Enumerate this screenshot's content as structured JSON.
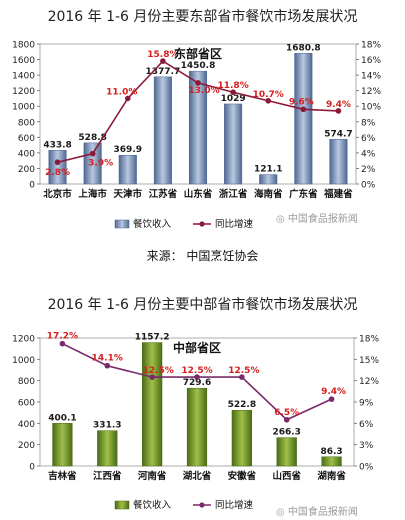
{
  "page_title_east": "2016 年 1-6 月份主要东部省市餐饮市场发展状况",
  "page_title_central": "2016 年 1-6 月份主要中部省市餐饮市场发展状况",
  "source_text": "来源：  中国烹饪协会",
  "watermark": "中国食品报新闻",
  "colors": {
    "bar_east": "#7d93b8",
    "bar_central": "#6e8d2a",
    "line": "#8b1a3a",
    "line_central": "#7a2a6a"
  },
  "chart_data": [
    {
      "type": "bar",
      "title": "东部省区",
      "categories": [
        "北京市",
        "上海市",
        "天津市",
        "江苏省",
        "山东省",
        "浙江省",
        "海南省",
        "广东省",
        "福建省"
      ],
      "series": [
        {
          "name": "餐饮收入",
          "type": "bar",
          "values": [
            433.8,
            528.8,
            369.9,
            1377.7,
            1450.8,
            1029,
            121.1,
            1680.8,
            574.7
          ],
          "labels": [
            "433.8",
            "528.8",
            "369.9",
            "1377.7",
            "1450.8",
            "1029",
            "121.1",
            "1680.8",
            "574.7"
          ]
        },
        {
          "name": "同比增速",
          "type": "line",
          "axis": "right",
          "values": [
            2.8,
            3.9,
            11.0,
            15.8,
            13.0,
            11.8,
            10.7,
            9.6,
            9.4
          ],
          "labels": [
            "2.8%",
            "3.9%",
            "11.0%",
            "15.8%",
            "13.0%",
            "11.8%",
            "10.7%",
            "9.6%",
            "9.4%"
          ]
        }
      ],
      "ylim": [
        0,
        1800
      ],
      "yticks": [
        "0",
        "200",
        "400",
        "600",
        "800",
        "1000",
        "1200",
        "1400",
        "1600",
        "1800"
      ],
      "y2lim": [
        0,
        18
      ],
      "y2ticks": [
        "0%",
        "2%",
        "4%",
        "6%",
        "8%",
        "10%",
        "12%",
        "14%",
        "16%",
        "18%"
      ],
      "legend": [
        "餐饮收入",
        "同比增速"
      ],
      "legend_position": "bottom"
    },
    {
      "type": "bar",
      "title": "中部省区",
      "categories": [
        "吉林省",
        "江西省",
        "河南省",
        "湖北省",
        "安徽省",
        "山西省",
        "湖南省"
      ],
      "series": [
        {
          "name": "餐饮收入",
          "type": "bar",
          "values": [
            400.1,
            331.3,
            1157.2,
            729.6,
            522.8,
            266.3,
            86.3
          ],
          "labels": [
            "400.1",
            "331.3",
            "1157.2",
            "729.6",
            "522.8",
            "266.3",
            "86.3"
          ]
        },
        {
          "name": "同比增速",
          "type": "line",
          "axis": "right",
          "values": [
            17.2,
            14.1,
            12.5,
            12.5,
            12.5,
            6.5,
            9.4
          ],
          "labels": [
            "17.2%",
            "14.1%",
            "12.5%",
            "12.5%",
            "12.5%",
            "6.5%",
            "9.4%"
          ]
        }
      ],
      "ylim": [
        0,
        1200
      ],
      "yticks": [
        "0",
        "200",
        "400",
        "600",
        "800",
        "1000",
        "1200"
      ],
      "y2lim": [
        0,
        18
      ],
      "y2ticks": [
        "0%",
        "3%",
        "6%",
        "9%",
        "12%",
        "15%",
        "18%"
      ],
      "legend": [
        "餐饮收入",
        "同比增速"
      ],
      "legend_position": "bottom"
    }
  ]
}
